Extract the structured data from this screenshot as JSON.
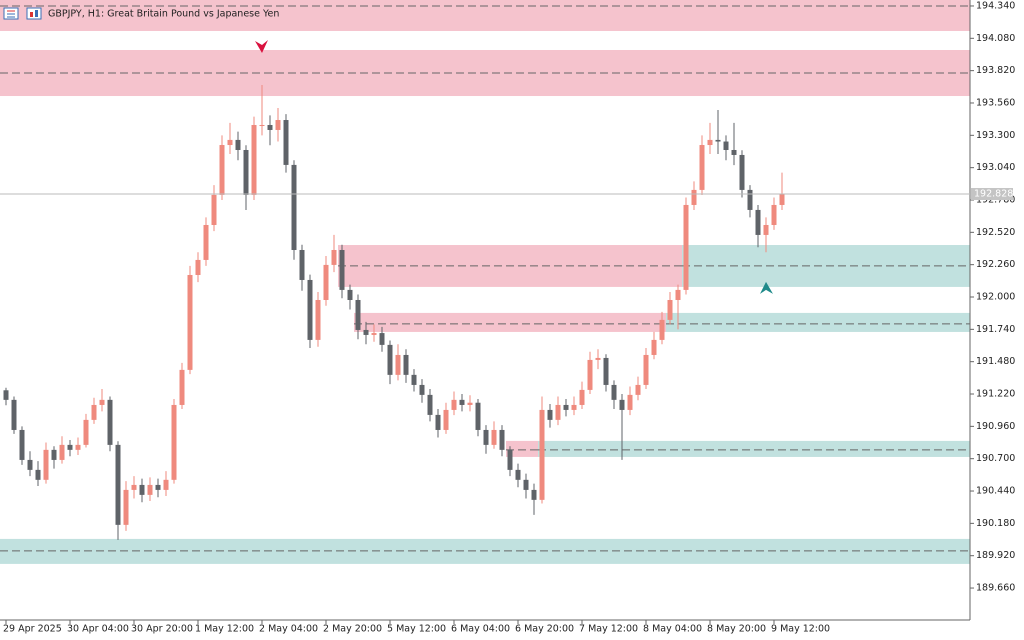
{
  "chart_data": {
    "type": "candlestick",
    "title": "GBPJPY, H1:  Great Britain Pound vs Japanese Yen",
    "up_color": "#ef8a7e",
    "down_color": "#5f6368",
    "ylim": [
      189.403,
      194.388
    ],
    "yticks": [
      {
        "value": 194.34,
        "label": "194.340"
      },
      {
        "value": 194.08,
        "label": "194.080"
      },
      {
        "value": 193.82,
        "label": "193.820"
      },
      {
        "value": 193.56,
        "label": "193.560"
      },
      {
        "value": 193.3,
        "label": "193.300"
      },
      {
        "value": 193.04,
        "label": "193.040"
      },
      {
        "value": 192.78,
        "label": "192.780"
      },
      {
        "value": 192.52,
        "label": "192.520"
      },
      {
        "value": 192.26,
        "label": "192.260"
      },
      {
        "value": 192.0,
        "label": "192.000"
      },
      {
        "value": 191.74,
        "label": "191.740"
      },
      {
        "value": 191.48,
        "label": "191.480"
      },
      {
        "value": 191.22,
        "label": "191.220"
      },
      {
        "value": 190.96,
        "label": "190.960"
      },
      {
        "value": 190.7,
        "label": "190.700"
      },
      {
        "value": 190.44,
        "label": "190.440"
      },
      {
        "value": 190.18,
        "label": "190.180"
      },
      {
        "value": 189.92,
        "label": "189.920"
      },
      {
        "value": 189.66,
        "label": "189.660"
      }
    ],
    "categories": [
      "29 Apr 2025",
      null,
      null,
      null,
      null,
      null,
      null,
      null,
      "30 Apr 04:00",
      null,
      null,
      null,
      null,
      null,
      null,
      null,
      "30 Apr 20:00",
      null,
      null,
      null,
      null,
      null,
      null,
      null,
      "1 May 12:00",
      null,
      null,
      null,
      null,
      null,
      null,
      null,
      "2 May 04:00",
      null,
      null,
      null,
      null,
      null,
      null,
      null,
      "2 May 20:00",
      null,
      null,
      null,
      null,
      null,
      null,
      null,
      "5 May 12:00",
      null,
      null,
      null,
      null,
      null,
      null,
      null,
      "6 May 04:00",
      null,
      null,
      null,
      null,
      null,
      null,
      null,
      "6 May 20:00",
      null,
      null,
      null,
      null,
      null,
      null,
      null,
      "7 May 12:00",
      null,
      null,
      null,
      null,
      null,
      null,
      null,
      "8 May 04:00",
      null,
      null,
      null,
      null,
      null,
      null,
      null,
      "8 May 20:00",
      null,
      null,
      null,
      null,
      null,
      null,
      null,
      "9 May 12:00",
      null
    ],
    "open": [
      191.25,
      191.173,
      190.931,
      190.69,
      190.61,
      190.53,
      190.771,
      190.69,
      190.811,
      190.771,
      190.811,
      191.012,
      191.132,
      191.173,
      190.811,
      190.168,
      190.449,
      190.489,
      190.409,
      190.489,
      190.449,
      190.53,
      191.132,
      191.414,
      192.177,
      192.298,
      192.579,
      192.821,
      193.222,
      193.263,
      193.182,
      192.821,
      193.383,
      193.383,
      193.343,
      193.423,
      193.062,
      192.378,
      192.137,
      191.655,
      191.976,
      192.258,
      192.378,
      192.057,
      191.976,
      191.735,
      191.695,
      191.71,
      191.615,
      191.374,
      191.534,
      191.374,
      191.293,
      191.213,
      191.052,
      190.931,
      191.092,
      191.173,
      191.132,
      191.15,
      190.931,
      190.811,
      190.931,
      190.771,
      190.61,
      190.53,
      190.449,
      190.369,
      191.092,
      191.012,
      191.132,
      191.092,
      191.132,
      191.253,
      191.494,
      191.51,
      191.293,
      191.173,
      191.092,
      191.213,
      191.293,
      191.534,
      191.655,
      191.816,
      191.976,
      192.057,
      192.74,
      192.861,
      193.222,
      193.263,
      193.25,
      193.182,
      193.142,
      192.861,
      192.7,
      192.499,
      192.579,
      192.74
    ],
    "high": [
      191.27,
      191.2,
      190.96,
      190.76,
      190.68,
      190.83,
      190.8,
      190.88,
      190.85,
      190.87,
      191.06,
      191.19,
      191.26,
      191.2,
      190.84,
      190.52,
      190.56,
      190.54,
      190.55,
      190.54,
      190.6,
      191.18,
      191.47,
      192.25,
      192.36,
      192.64,
      192.9,
      193.3,
      193.4,
      193.33,
      193.22,
      193.45,
      193.705,
      193.46,
      193.52,
      193.47,
      193.1,
      192.42,
      192.18,
      192.04,
      192.33,
      192.5,
      192.42,
      192.1,
      192.02,
      191.8,
      191.78,
      191.76,
      191.65,
      191.62,
      191.58,
      191.42,
      191.34,
      191.26,
      191.1,
      191.15,
      191.24,
      191.22,
      191.21,
      191.18,
      190.97,
      191.0,
      190.97,
      190.8,
      190.66,
      190.58,
      190.5,
      191.2,
      191.14,
      191.2,
      191.18,
      191.2,
      191.32,
      191.56,
      191.58,
      191.54,
      191.33,
      191.22,
      191.28,
      191.36,
      191.59,
      191.72,
      191.88,
      192.04,
      192.1,
      192.8,
      192.93,
      193.3,
      193.4,
      193.504,
      193.3,
      193.4,
      193.18,
      192.9,
      192.74,
      192.64,
      192.8,
      193.0
    ],
    "low": [
      191.13,
      190.9,
      190.65,
      190.56,
      190.48,
      190.5,
      190.62,
      190.66,
      190.72,
      190.73,
      190.79,
      190.98,
      191.08,
      190.76,
      190.047,
      190.12,
      190.38,
      190.35,
      190.36,
      190.39,
      190.4,
      190.5,
      191.1,
      191.38,
      192.12,
      192.25,
      192.53,
      192.78,
      193.15,
      193.1,
      192.7,
      192.78,
      193.3,
      193.22,
      193.25,
      193.0,
      192.3,
      192.05,
      191.59,
      191.6,
      191.93,
      192.2,
      191.99,
      191.9,
      191.66,
      191.62,
      191.64,
      191.56,
      191.3,
      191.33,
      191.31,
      191.24,
      191.15,
      191.0,
      190.87,
      190.9,
      191.05,
      191.08,
      191.08,
      190.88,
      190.74,
      190.78,
      190.72,
      190.56,
      190.47,
      190.38,
      190.248,
      190.34,
      190.95,
      190.97,
      191.04,
      191.05,
      191.1,
      191.22,
      191.42,
      191.24,
      191.1,
      190.69,
      191.05,
      191.17,
      191.26,
      191.5,
      191.62,
      191.78,
      191.74,
      192.02,
      192.7,
      192.82,
      193.15,
      193.15,
      193.1,
      193.06,
      192.8,
      192.64,
      192.4,
      192.36,
      192.54,
      192.7
    ],
    "close": [
      191.173,
      190.931,
      190.69,
      190.61,
      190.53,
      190.771,
      190.69,
      190.811,
      190.771,
      190.811,
      191.012,
      191.132,
      191.173,
      190.811,
      190.168,
      190.449,
      190.489,
      190.409,
      190.489,
      190.449,
      190.53,
      191.132,
      191.414,
      192.177,
      192.298,
      192.579,
      192.821,
      193.222,
      193.263,
      193.182,
      192.821,
      193.383,
      193.383,
      193.343,
      193.423,
      193.062,
      192.378,
      192.137,
      191.655,
      191.976,
      192.258,
      192.378,
      192.057,
      191.976,
      191.735,
      191.695,
      191.71,
      191.615,
      191.374,
      191.534,
      191.374,
      191.293,
      191.213,
      191.052,
      190.931,
      191.092,
      191.173,
      191.132,
      191.15,
      190.931,
      190.811,
      190.931,
      190.771,
      190.61,
      190.53,
      190.449,
      190.369,
      191.092,
      191.012,
      191.132,
      191.092,
      191.132,
      191.253,
      191.494,
      191.51,
      191.293,
      191.173,
      191.092,
      191.213,
      191.293,
      191.534,
      191.655,
      191.816,
      191.976,
      192.057,
      192.74,
      192.861,
      193.222,
      193.263,
      193.25,
      193.182,
      193.142,
      192.861,
      192.7,
      192.499,
      192.579,
      192.74,
      192.828
    ],
    "zones": [
      {
        "color": "#f5c3cd",
        "from": 0,
        "top": 194.388,
        "bottom": 194.139,
        "level": 194.34
      },
      {
        "color": "#f5c3cd",
        "from": 0,
        "top": 193.986,
        "bottom": 193.616,
        "level": 193.801
      },
      {
        "color": "#f5c3cd",
        "from": 42,
        "to": 85,
        "top": 192.418,
        "bottom": 192.081,
        "level": 192.25
      },
      {
        "color": "#c1e1df",
        "from": 85,
        "top": 192.418,
        "bottom": 192.081,
        "level": 192.25
      },
      {
        "color": "#f5c3cd",
        "from": 44,
        "to": 83,
        "top": 191.872,
        "bottom": 191.719,
        "level": 191.784
      },
      {
        "color": "#c1e1df",
        "from": 83,
        "top": 191.872,
        "bottom": 191.719,
        "level": 191.784
      },
      {
        "color": "#f5c3cd",
        "from": 63,
        "to": 67,
        "top": 190.843,
        "bottom": 190.714,
        "level": 190.771
      },
      {
        "color": "#c1e1df",
        "from": 67,
        "top": 190.843,
        "bottom": 190.714,
        "level": 190.771
      },
      {
        "color": "#c1e1df",
        "from": 0,
        "top": 190.055,
        "bottom": 189.854,
        "level": 189.959
      }
    ],
    "markers": [
      {
        "index": 32,
        "price": 194.01,
        "direction": "down",
        "color": "#d9123f"
      },
      {
        "index": 95,
        "price": 192.073,
        "direction": "up",
        "color": "#1f8a8a"
      }
    ]
  }
}
